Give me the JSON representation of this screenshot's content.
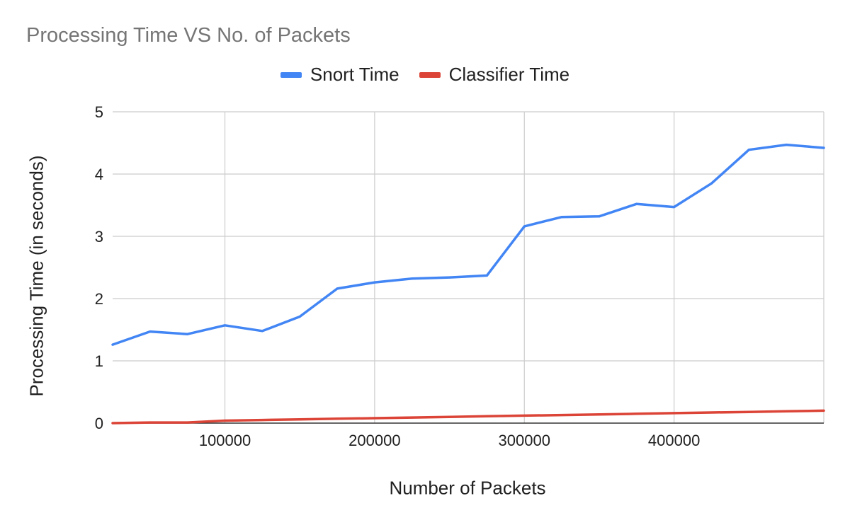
{
  "chart_data": {
    "type": "line",
    "title": "Processing Time VS No. of Packets",
    "xlabel": "Number of Packets",
    "ylabel": "Processing Time (in seconds)",
    "xlim": [
      25000,
      500000
    ],
    "ylim": [
      0,
      5
    ],
    "x_ticks": [
      100000,
      200000,
      300000,
      400000
    ],
    "x_tick_labels": [
      "100000",
      "200000",
      "300000",
      "400000"
    ],
    "y_ticks": [
      0,
      1,
      2,
      3,
      4,
      5
    ],
    "y_tick_labels": [
      "0",
      "1",
      "2",
      "3",
      "4",
      "5"
    ],
    "grid": true,
    "legend_position": "top",
    "x": [
      25000,
      50000,
      75000,
      100000,
      125000,
      150000,
      175000,
      200000,
      225000,
      250000,
      275000,
      300000,
      325000,
      350000,
      375000,
      400000,
      425000,
      450000,
      475000,
      500000
    ],
    "series": [
      {
        "name": "Snort Time",
        "color": "#4285f4",
        "values": [
          1.26,
          1.47,
          1.43,
          1.57,
          1.48,
          1.71,
          2.16,
          2.26,
          2.32,
          2.34,
          2.37,
          3.16,
          3.31,
          3.32,
          3.52,
          3.47,
          3.85,
          4.39,
          4.47,
          4.42
        ]
      },
      {
        "name": "Classifier Time",
        "color": "#db4437",
        "values": [
          0.0,
          0.01,
          0.01,
          0.04,
          0.05,
          0.06,
          0.07,
          0.08,
          0.09,
          0.1,
          0.11,
          0.12,
          0.13,
          0.14,
          0.15,
          0.16,
          0.17,
          0.18,
          0.19,
          0.2
        ]
      }
    ]
  }
}
